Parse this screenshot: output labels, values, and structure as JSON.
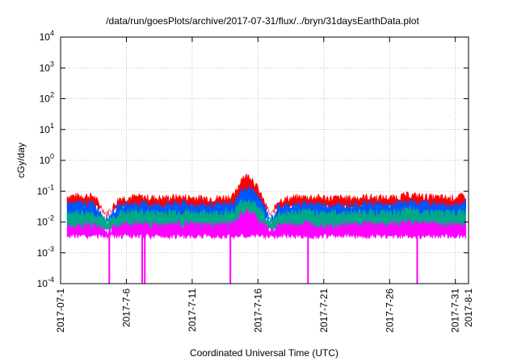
{
  "chart_data": {
    "type": "line",
    "title": "/data/run/goesPlots/archive/2017-07-31/flux/../bryn/31daysEarthData.plot",
    "xlabel": "Coordinated Universal Time (UTC)",
    "ylabel": "cGy/day",
    "yscale": "log",
    "ylim": [
      0.0001,
      10000
    ],
    "xlim": [
      "2017-07-01",
      "2017-08-01"
    ],
    "grid": true,
    "y_ticks": [
      {
        "base": "10",
        "exp": "-4"
      },
      {
        "base": "10",
        "exp": "-3"
      },
      {
        "base": "10",
        "exp": "-2"
      },
      {
        "base": "10",
        "exp": "-1"
      },
      {
        "base": "10",
        "exp": "0"
      },
      {
        "base": "10",
        "exp": "1"
      },
      {
        "base": "10",
        "exp": "2"
      },
      {
        "base": "10",
        "exp": "3"
      },
      {
        "base": "10",
        "exp": "4"
      }
    ],
    "x_ticks": [
      "2017-07-1",
      "2017-7-6",
      "2017-7-11",
      "2017-7-16",
      "2017-7-21",
      "2017-7-26",
      "2017-7-31",
      "2017-8-1"
    ],
    "x_tick_days": [
      1,
      6,
      11,
      16,
      21,
      26,
      31,
      32
    ],
    "series": [
      {
        "color": "#ff0000",
        "x": [
          1.5,
          3.5,
          4.5,
          5.5,
          7.0,
          8.5,
          10.0,
          11.5,
          13.0,
          14.2,
          14.8,
          15.5,
          16.2,
          17.0,
          17.5,
          18.5,
          20.0,
          21.5,
          23.0,
          24.5,
          26.0,
          27.5,
          29.0,
          30.5,
          31.8
        ],
        "y": [
          0.07,
          0.07,
          0.018,
          0.06,
          0.065,
          0.06,
          0.065,
          0.06,
          0.06,
          0.07,
          0.3,
          0.3,
          0.08,
          0.015,
          0.05,
          0.06,
          0.065,
          0.06,
          0.06,
          0.065,
          0.06,
          0.075,
          0.065,
          0.06,
          0.07
        ]
      },
      {
        "color": "#0055ff",
        "x": [
          1.5,
          3.5,
          4.5,
          5.5,
          7.0,
          8.5,
          10.0,
          11.5,
          13.0,
          14.2,
          14.8,
          15.5,
          16.2,
          17.0,
          17.5,
          18.5,
          20.0,
          21.5,
          23.0,
          24.5,
          26.0,
          27.5,
          29.0,
          30.5,
          31.8
        ],
        "y": [
          0.04,
          0.04,
          0.013,
          0.035,
          0.04,
          0.035,
          0.04,
          0.035,
          0.035,
          0.04,
          0.12,
          0.12,
          0.05,
          0.012,
          0.03,
          0.035,
          0.04,
          0.035,
          0.035,
          0.04,
          0.035,
          0.045,
          0.04,
          0.035,
          0.04
        ]
      },
      {
        "color": "#00aa88",
        "x": [
          1.5,
          3.5,
          4.5,
          5.5,
          7.0,
          8.5,
          10.0,
          11.5,
          13.0,
          14.2,
          14.8,
          15.5,
          16.2,
          17.0,
          17.5,
          18.5,
          20.0,
          21.5,
          23.0,
          24.5,
          26.0,
          27.5,
          29.0,
          30.5,
          31.8
        ],
        "y": [
          0.02,
          0.02,
          0.01,
          0.02,
          0.022,
          0.02,
          0.022,
          0.02,
          0.02,
          0.022,
          0.05,
          0.05,
          0.025,
          0.009,
          0.018,
          0.02,
          0.022,
          0.02,
          0.02,
          0.022,
          0.02,
          0.025,
          0.022,
          0.02,
          0.022
        ]
      },
      {
        "color": "#ff00ff",
        "x": [
          1.5,
          3.5,
          4.5,
          5.5,
          7.0,
          8.5,
          10.0,
          11.5,
          13.0,
          14.2,
          14.8,
          15.5,
          16.2,
          17.0,
          17.5,
          18.5,
          20.0,
          21.5,
          23.0,
          24.5,
          26.0,
          27.5,
          29.0,
          30.5,
          31.8
        ],
        "y": [
          0.008,
          0.008,
          0.005,
          0.008,
          0.009,
          0.008,
          0.009,
          0.008,
          0.008,
          0.009,
          0.02,
          0.02,
          0.01,
          0.005,
          0.008,
          0.008,
          0.009,
          0.008,
          0.008,
          0.009,
          0.008,
          0.01,
          0.009,
          0.008,
          0.009
        ]
      }
    ],
    "dropouts_magenta_x": [
      4.7,
      7.2,
      7.4,
      13.9,
      19.8,
      28.1
    ],
    "dropout_min_y": 0.0001
  }
}
